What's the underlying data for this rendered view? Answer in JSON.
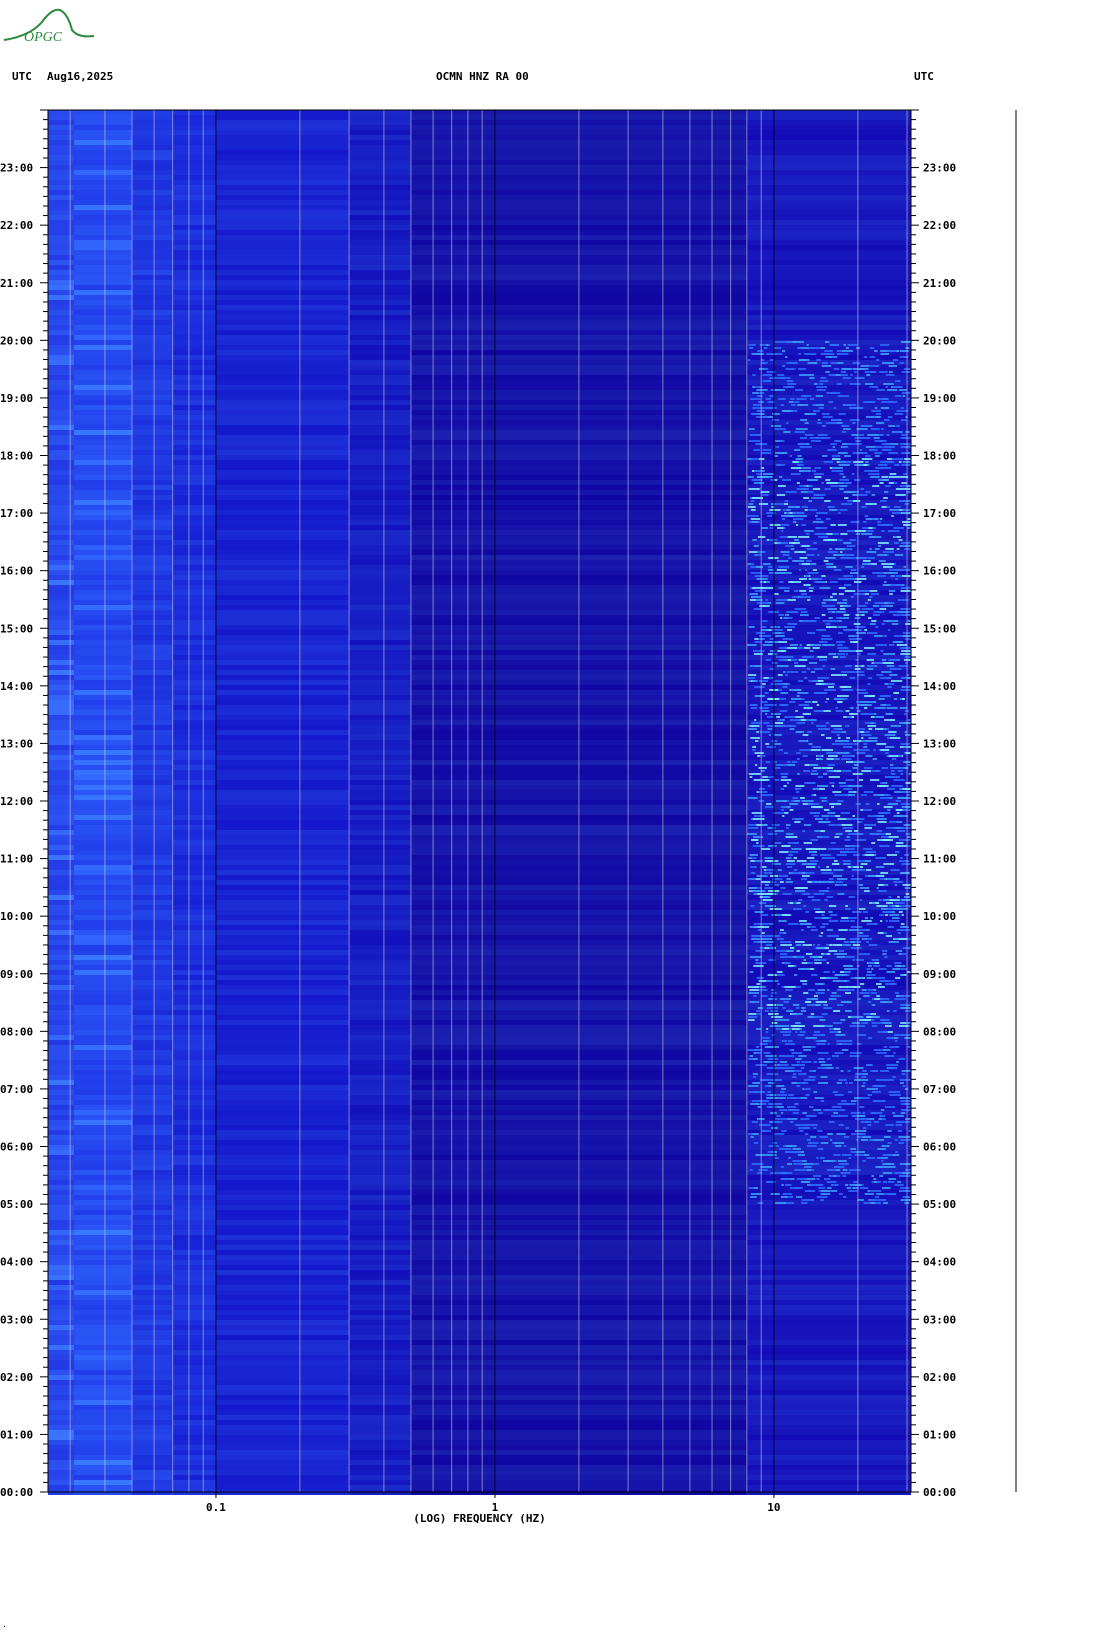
{
  "header": {
    "left_tz": "UTC",
    "date": "Aug16,2025",
    "station": "OCMN HNZ RA 00",
    "right_tz": "UTC"
  },
  "logo": {
    "text": "OPGC"
  },
  "colors": {
    "background_low": "#1a0ca8",
    "background_mid": "#1d33e0",
    "background_high": "#2f6bff",
    "peak": "#7fe8ff",
    "gridline": "#c8c8dc",
    "decade_line": "#000000"
  },
  "chart_data": {
    "type": "heatmap",
    "title": "OCMN HNZ RA 00",
    "xlabel": "(LOG) FREQUENCY (HZ)",
    "ylabel": "UTC",
    "x_scale": "log",
    "xlim": [
      0.025,
      31
    ],
    "x_ticks": [
      {
        "value": 0.1,
        "label": "0.1"
      },
      {
        "value": 1,
        "label": "1"
      },
      {
        "value": 10,
        "label": "10"
      }
    ],
    "y_time_range_hours": [
      0,
      24
    ],
    "y_ticks": [
      "00:00",
      "01:00",
      "02:00",
      "03:00",
      "04:00",
      "05:00",
      "06:00",
      "07:00",
      "08:00",
      "09:00",
      "10:00",
      "11:00",
      "12:00",
      "13:00",
      "14:00",
      "15:00",
      "16:00",
      "17:00",
      "18:00",
      "19:00",
      "20:00",
      "21:00",
      "22:00",
      "23:00"
    ],
    "grid": true,
    "description_bands": [
      {
        "freq_range_hz": [
          0.025,
          0.05
        ],
        "relative_power": "elevated"
      },
      {
        "freq_range_hz": [
          0.05,
          0.1
        ],
        "relative_power": "moderate"
      },
      {
        "freq_range_hz": [
          0.1,
          8
        ],
        "relative_power": "low"
      },
      {
        "freq_range_hz": [
          8,
          31
        ],
        "relative_power": "high",
        "active_hours": [
          5,
          20
        ]
      }
    ]
  }
}
